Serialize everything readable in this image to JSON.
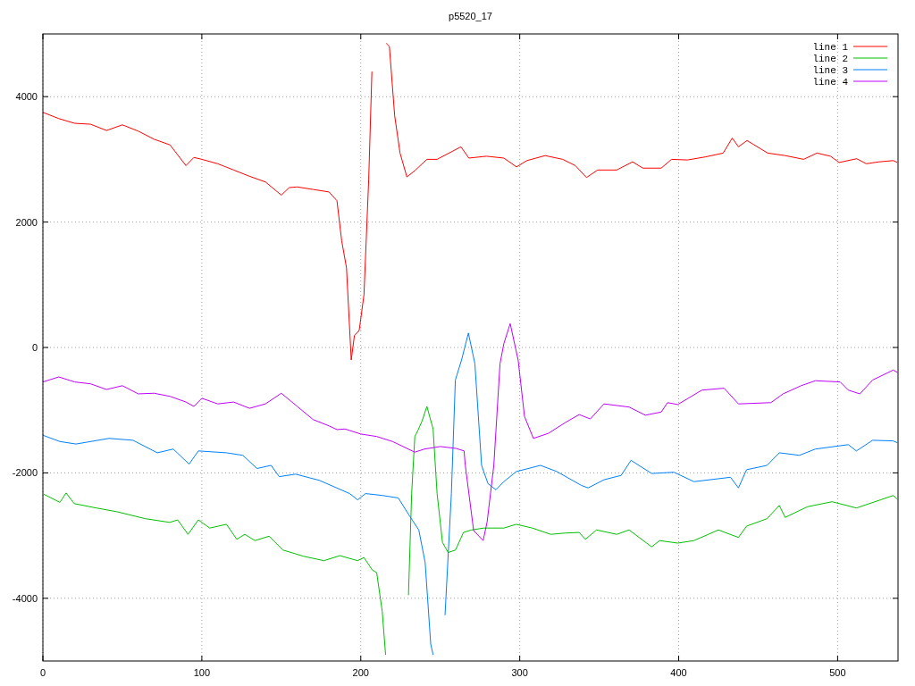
{
  "chart_data": {
    "type": "line",
    "title": "p5520_17",
    "xlim": [
      0,
      538
    ],
    "ylim": [
      -5000,
      5000
    ],
    "xticks": [
      0,
      100,
      200,
      300,
      400,
      500
    ],
    "yticks": [
      -4000,
      -2000,
      0,
      2000,
      4000
    ],
    "grid": true,
    "legend": "top right",
    "line_style": "solid",
    "marker": "none",
    "series": [
      {
        "name": "line 1",
        "color": "#ff0000",
        "x": [
          0,
          10,
          20,
          30,
          40,
          50,
          60,
          70,
          80,
          90,
          95,
          100,
          110,
          120,
          130,
          140,
          150,
          155,
          160,
          170,
          180,
          185,
          188,
          191,
          194,
          196,
          199,
          202,
          205,
          207,
          208.4,
          211,
          213.5,
          216,
          218,
          221.3,
          224.7,
          229,
          234,
          241.6,
          248,
          257,
          263,
          268,
          279,
          290,
          298,
          304.5,
          316,
          327,
          335,
          342,
          349,
          361,
          371,
          377.5,
          389,
          395.5,
          405.6,
          417,
          428,
          433.7,
          437.6,
          443,
          456,
          467,
          478.6,
          487,
          495.5,
          501,
          512,
          518,
          526,
          535,
          537.6
        ],
        "values": [
          3750,
          3650,
          3575,
          3560,
          3460,
          3550,
          3450,
          3320,
          3230,
          2900,
          3030,
          3000,
          2930,
          2830,
          2730,
          2640,
          2430,
          2550,
          2560,
          2520,
          2480,
          2340,
          1700,
          1270,
          -200,
          190,
          270,
          840,
          2690,
          4400,
          null,
          null,
          null,
          4850,
          4800,
          3700,
          3100,
          2720,
          2820,
          3000,
          3000,
          3120,
          3200,
          3020,
          3050,
          3020,
          2880,
          2980,
          3060,
          3000,
          2900,
          2710,
          2830,
          2830,
          2960,
          2860,
          2860,
          3000,
          2990,
          3040,
          3100,
          3340,
          3200,
          3300,
          3100,
          3060,
          3000,
          3100,
          3050,
          2950,
          3010,
          2930,
          2960,
          2980,
          2950
        ]
      },
      {
        "name": "line 2",
        "color": "#00c000",
        "x": [
          0.5,
          10.7,
          14.6,
          19.7,
          33.7,
          46.6,
          64.4,
          79.8,
          84.8,
          91.3,
          97.8,
          105,
          115.5,
          122,
          127,
          133.4,
          142.3,
          151,
          164,
          176.8,
          186.8,
          198,
          202,
          207.3,
          210,
          213.5,
          215.6,
          216.2,
          228.4,
          230,
          232,
          234,
          236,
          238.6,
          241.6,
          245.5,
          248,
          251.4,
          255,
          259.6,
          264.6,
          269.7,
          277.4,
          290,
          297.8,
          307.9,
          319.5,
          328.5,
          337.4,
          341.3,
          348.3,
          361,
          368.8,
          383,
          388,
          399.4,
          409.6,
          425,
          437.6,
          442.7,
          455.6,
          463.3,
          467,
          481,
          496.5,
          511.8,
          527,
          535,
          537.6
        ],
        "values": [
          -2340,
          -2470,
          -2320,
          -2490,
          -2560,
          -2620,
          -2730,
          -2790,
          -2750,
          -2980,
          -2750,
          -2880,
          -2820,
          -3060,
          -2980,
          -3080,
          -3010,
          -3230,
          -3330,
          -3400,
          -3320,
          -3400,
          -3350,
          -3550,
          -3590,
          -4210,
          -4900,
          null,
          null,
          -3950,
          -2330,
          -1420,
          -1320,
          -1170,
          -940,
          -1300,
          -2330,
          -3110,
          -3270,
          -3230,
          -2950,
          -2910,
          -2880,
          -2880,
          -2820,
          -2880,
          -2980,
          -2960,
          -2950,
          -3060,
          -2910,
          -2980,
          -2910,
          -3180,
          -3080,
          -3120,
          -3080,
          -2910,
          -3030,
          -2850,
          -2730,
          -2520,
          -2710,
          -2540,
          -2460,
          -2560,
          -2430,
          -2360,
          -2420
        ]
      },
      {
        "name": "line 3",
        "color": "#0080ff",
        "x": [
          0,
          10.7,
          20.8,
          41.6,
          56.7,
          72,
          82,
          92,
          97.8,
          115.5,
          125.8,
          134.7,
          143.6,
          148.7,
          159,
          174,
          193,
          198,
          203,
          213.5,
          223.6,
          230,
          236.5,
          240.5,
          244,
          245.5,
          246,
          248,
          252.5,
          253,
          257,
          259.5,
          263.4,
          267.7,
          271.8,
          276,
          280,
          285,
          290,
          297.8,
          313,
          323.4,
          338.8,
          343,
          353,
          363.8,
          370,
          383,
          397,
          409.6,
          432.6,
          437.6,
          442.7,
          455.6,
          463.3,
          476,
          486,
          506.7,
          511.8,
          522,
          535,
          537.6
        ],
        "values": [
          -1400,
          -1500,
          -1540,
          -1450,
          -1480,
          -1680,
          -1620,
          -1860,
          -1650,
          -1680,
          -1720,
          -1930,
          -1880,
          -2060,
          -2020,
          -2120,
          -2330,
          -2430,
          -2330,
          -2360,
          -2400,
          -2660,
          -2910,
          -3430,
          -4730,
          -4900,
          null,
          null,
          null,
          -4270,
          -2330,
          -520,
          -200,
          230,
          -260,
          -1880,
          -2170,
          -2270,
          -2140,
          -1980,
          -1880,
          -1980,
          -2200,
          -2240,
          -2110,
          -2040,
          -1800,
          -2010,
          -1990,
          -2140,
          -2070,
          -2240,
          -1950,
          -1880,
          -1680,
          -1720,
          -1620,
          -1550,
          -1650,
          -1480,
          -1490,
          -1520
        ]
      },
      {
        "name": "line 4",
        "color": "#c000ff",
        "x": [
          0,
          10,
          20,
          30,
          40,
          50,
          60,
          70,
          80,
          90,
          95,
          100,
          110,
          120,
          130,
          140,
          150,
          160,
          170,
          180,
          185,
          190,
          200,
          210,
          220,
          234,
          240,
          250,
          260,
          265,
          265.7,
          271,
          277,
          279.5,
          283.7,
          287.6,
          290,
          294,
          299,
          303,
          308.6,
          318,
          328.5,
          337.4,
          344.4,
          353,
          368.8,
          379,
          389,
          393,
          399.4,
          414.6,
          428.6,
          437.6,
          458,
          465.7,
          477,
          486,
          501.6,
          506.7,
          514,
          522,
          535,
          537.6
        ],
        "values": [
          -550,
          -470,
          -550,
          -580,
          -670,
          -610,
          -740,
          -730,
          -780,
          -870,
          -940,
          -810,
          -900,
          -870,
          -970,
          -900,
          -730,
          -940,
          -1150,
          -1250,
          -1310,
          -1300,
          -1380,
          -1420,
          -1500,
          -1670,
          -1620,
          -1580,
          -1610,
          -1650,
          -1870,
          -2920,
          -3080,
          -2780,
          -1880,
          -260,
          60,
          380,
          -200,
          -1100,
          -1450,
          -1370,
          -1200,
          -1070,
          -1140,
          -900,
          -950,
          -1080,
          -1030,
          -880,
          -910,
          -680,
          -650,
          -900,
          -880,
          -740,
          -610,
          -530,
          -550,
          -680,
          -740,
          -520,
          -360,
          -400
        ]
      }
    ]
  }
}
